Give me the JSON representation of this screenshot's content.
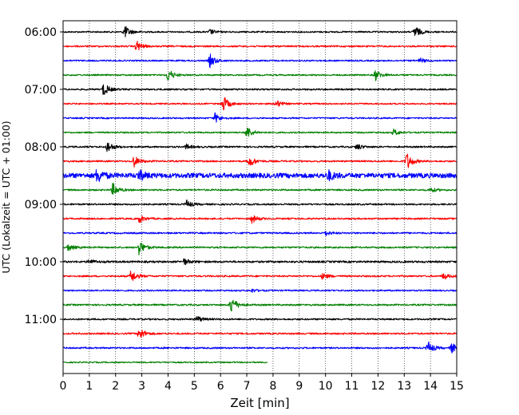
{
  "chart_data": {
    "type": "line",
    "title": "",
    "xlabel": "Zeit  [min]",
    "ylabel": "UTC (Lokalzeit = UTC + 01:00)",
    "xlim": [
      0,
      15
    ],
    "x_ticks": [
      "0",
      "1",
      "2",
      "3",
      "4",
      "5",
      "6",
      "7",
      "8",
      "9",
      "10",
      "11",
      "12",
      "13",
      "14",
      "15"
    ],
    "y_tick_labels": [
      "06:00",
      "07:00",
      "08:00",
      "09:00",
      "10:00",
      "11:00"
    ],
    "grid": {
      "vertical": true,
      "style": "dotted"
    },
    "trace_interval_min": 15,
    "series": [
      {
        "start": "06:00",
        "color": "#000000",
        "base": 0.9,
        "events": [
          {
            "t": 2.35,
            "a": 8
          },
          {
            "t": 13.4,
            "a": 8
          },
          {
            "t": 5.6,
            "a": 3
          }
        ],
        "end": 15
      },
      {
        "start": "06:15",
        "color": "#ff0000",
        "base": 1.0,
        "events": [
          {
            "t": 2.8,
            "a": 7
          }
        ],
        "end": 15
      },
      {
        "start": "06:30",
        "color": "#0000ff",
        "base": 0.9,
        "events": [
          {
            "t": 5.6,
            "a": 8
          },
          {
            "t": 13.6,
            "a": 3
          }
        ],
        "end": 15
      },
      {
        "start": "06:45",
        "color": "#008000",
        "base": 0.9,
        "events": [
          {
            "t": 4.0,
            "a": 8
          },
          {
            "t": 11.9,
            "a": 7
          }
        ],
        "end": 15
      },
      {
        "start": "07:00",
        "color": "#000000",
        "base": 1.0,
        "events": [
          {
            "t": 1.55,
            "a": 8
          }
        ],
        "end": 15
      },
      {
        "start": "07:15",
        "color": "#ff0000",
        "base": 0.9,
        "events": [
          {
            "t": 6.1,
            "a": 10
          },
          {
            "t": 8.1,
            "a": 5
          }
        ],
        "end": 15
      },
      {
        "start": "07:30",
        "color": "#0000ff",
        "base": 0.9,
        "events": [
          {
            "t": 5.8,
            "a": 6
          }
        ],
        "end": 15
      },
      {
        "start": "07:45",
        "color": "#008000",
        "base": 0.9,
        "events": [
          {
            "t": 7.0,
            "a": 8
          },
          {
            "t": 12.6,
            "a": 4
          }
        ],
        "end": 15
      },
      {
        "start": "08:00",
        "color": "#000000",
        "base": 1.0,
        "events": [
          {
            "t": 1.7,
            "a": 7
          },
          {
            "t": 11.2,
            "a": 4
          },
          {
            "t": 4.7,
            "a": 3
          }
        ],
        "end": 15
      },
      {
        "start": "08:15",
        "color": "#ff0000",
        "base": 1.0,
        "events": [
          {
            "t": 2.7,
            "a": 7
          },
          {
            "t": 7.1,
            "a": 7
          },
          {
            "t": 13.1,
            "a": 11
          }
        ],
        "end": 15
      },
      {
        "start": "08:30",
        "color": "#0000ff",
        "base": 3.0,
        "events": [
          {
            "t": 1.3,
            "a": 9
          },
          {
            "t": 2.9,
            "a": 6
          },
          {
            "t": 10.1,
            "a": 6
          }
        ],
        "end": 15
      },
      {
        "start": "08:45",
        "color": "#008000",
        "base": 1.0,
        "events": [
          {
            "t": 1.9,
            "a": 8
          },
          {
            "t": 14.0,
            "a": 3
          }
        ],
        "end": 15
      },
      {
        "start": "09:00",
        "color": "#000000",
        "base": 1.0,
        "events": [
          {
            "t": 4.7,
            "a": 5
          }
        ],
        "end": 15
      },
      {
        "start": "09:15",
        "color": "#ff0000",
        "base": 1.0,
        "events": [
          {
            "t": 2.9,
            "a": 5
          },
          {
            "t": 7.2,
            "a": 5
          }
        ],
        "end": 15
      },
      {
        "start": "09:30",
        "color": "#0000ff",
        "base": 1.0,
        "events": [
          {
            "t": 10.0,
            "a": 3
          }
        ],
        "end": 15
      },
      {
        "start": "09:45",
        "color": "#008000",
        "base": 1.0,
        "events": [
          {
            "t": 2.9,
            "a": 9
          },
          {
            "t": 0.2,
            "a": 4
          }
        ],
        "end": 15
      },
      {
        "start": "10:00",
        "color": "#000000",
        "base": 1.2,
        "events": [
          {
            "t": 4.6,
            "a": 4
          },
          {
            "t": 1.0,
            "a": 3
          }
        ],
        "end": 15
      },
      {
        "start": "10:15",
        "color": "#ff0000",
        "base": 1.0,
        "events": [
          {
            "t": 2.6,
            "a": 8
          },
          {
            "t": 9.9,
            "a": 4
          },
          {
            "t": 14.5,
            "a": 4
          }
        ],
        "end": 15
      },
      {
        "start": "10:30",
        "color": "#0000ff",
        "base": 0.9,
        "events": [
          {
            "t": 7.2,
            "a": 2
          }
        ],
        "end": 15
      },
      {
        "start": "10:45",
        "color": "#008000",
        "base": 1.0,
        "events": [
          {
            "t": 6.4,
            "a": 11
          }
        ],
        "end": 15
      },
      {
        "start": "11:00",
        "color": "#000000",
        "base": 1.0,
        "events": [
          {
            "t": 5.1,
            "a": 4
          }
        ],
        "end": 15
      },
      {
        "start": "11:15",
        "color": "#ff0000",
        "base": 1.0,
        "events": [
          {
            "t": 2.9,
            "a": 8
          }
        ],
        "end": 15
      },
      {
        "start": "11:30",
        "color": "#0000ff",
        "base": 1.0,
        "events": [
          {
            "t": 13.9,
            "a": 8
          },
          {
            "t": 14.8,
            "a": 6
          }
        ],
        "end": 15
      },
      {
        "start": "11:45",
        "color": "#008000",
        "base": 0.8,
        "events": [],
        "end": 7.8
      }
    ]
  }
}
